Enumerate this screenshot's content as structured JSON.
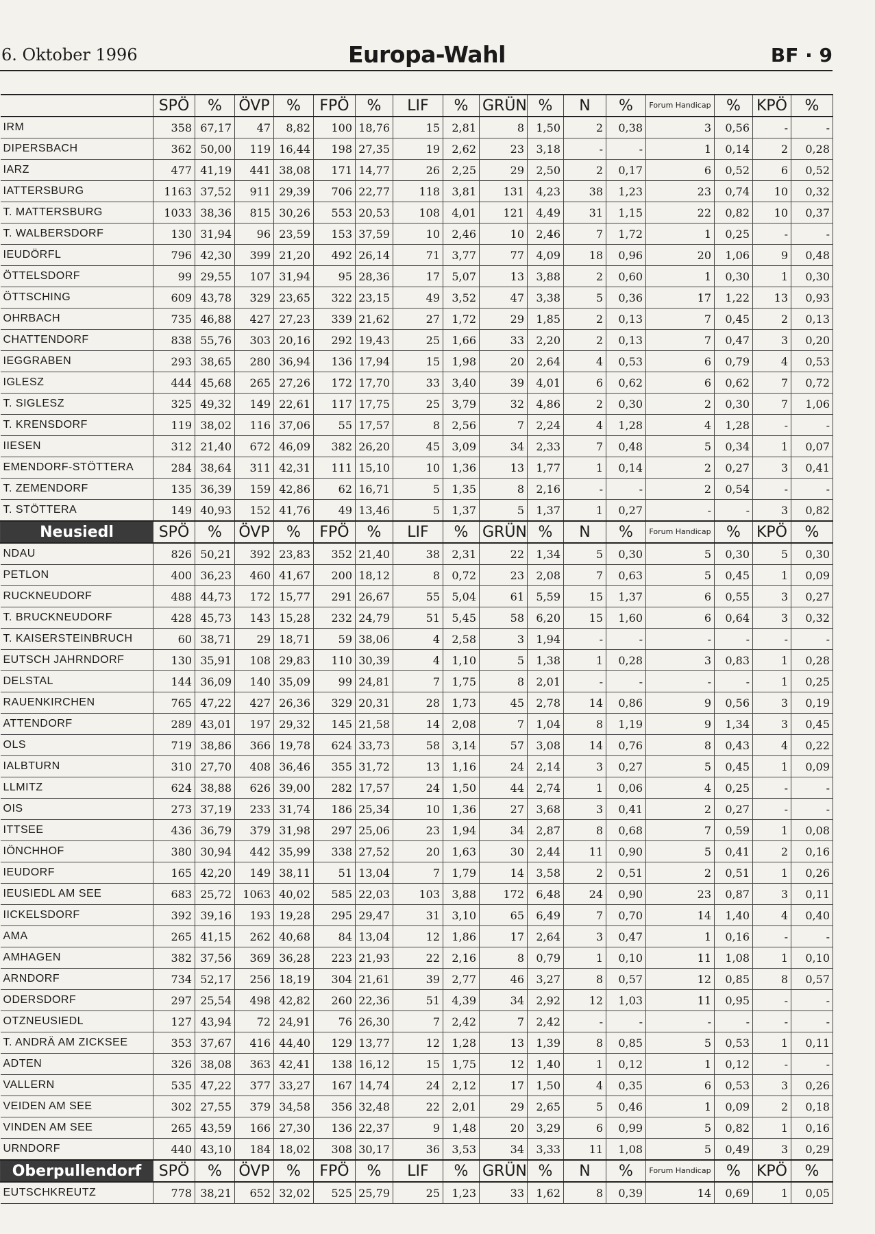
{
  "header": {
    "date": "6. Oktober 1996",
    "title": "Europa-Wahl",
    "page": "BF · 9"
  },
  "columns": [
    "SPÖ",
    "%",
    "ÖVP",
    "%",
    "FPÖ",
    "%",
    "LIF",
    "%",
    "GRÜNE",
    "%",
    "N",
    "%",
    "Forum Handicap",
    "%",
    "KPÖ",
    "%"
  ],
  "sections": [
    {
      "title": "",
      "rows": [
        [
          "IRM",
          "358",
          "67,17",
          "47",
          "8,82",
          "100",
          "18,76",
          "15",
          "2,81",
          "8",
          "1,50",
          "2",
          "0,38",
          "3",
          "0,56",
          "-",
          "-"
        ],
        [
          "DIPERSBACH",
          "362",
          "50,00",
          "119",
          "16,44",
          "198",
          "27,35",
          "19",
          "2,62",
          "23",
          "3,18",
          "-",
          "-",
          "1",
          "0,14",
          "2",
          "0,28"
        ],
        [
          "IARZ",
          "477",
          "41,19",
          "441",
          "38,08",
          "171",
          "14,77",
          "26",
          "2,25",
          "29",
          "2,50",
          "2",
          "0,17",
          "6",
          "0,52",
          "6",
          "0,52"
        ],
        [
          "IATTERSBURG",
          "1163",
          "37,52",
          "911",
          "29,39",
          "706",
          "22,77",
          "118",
          "3,81",
          "131",
          "4,23",
          "38",
          "1,23",
          "23",
          "0,74",
          "10",
          "0,32"
        ],
        [
          "T. MATTERSBURG",
          "1033",
          "38,36",
          "815",
          "30,26",
          "553",
          "20,53",
          "108",
          "4,01",
          "121",
          "4,49",
          "31",
          "1,15",
          "22",
          "0,82",
          "10",
          "0,37"
        ],
        [
          "T. WALBERSDORF",
          "130",
          "31,94",
          "96",
          "23,59",
          "153",
          "37,59",
          "10",
          "2,46",
          "10",
          "2,46",
          "7",
          "1,72",
          "1",
          "0,25",
          "-",
          "-"
        ],
        [
          "IEUDÖRFL",
          "796",
          "42,30",
          "399",
          "21,20",
          "492",
          "26,14",
          "71",
          "3,77",
          "77",
          "4,09",
          "18",
          "0,96",
          "20",
          "1,06",
          "9",
          "0,48"
        ],
        [
          "ÖTTELSDORF",
          "99",
          "29,55",
          "107",
          "31,94",
          "95",
          "28,36",
          "17",
          "5,07",
          "13",
          "3,88",
          "2",
          "0,60",
          "1",
          "0,30",
          "1",
          "0,30"
        ],
        [
          "ÖTTSCHING",
          "609",
          "43,78",
          "329",
          "23,65",
          "322",
          "23,15",
          "49",
          "3,52",
          "47",
          "3,38",
          "5",
          "0,36",
          "17",
          "1,22",
          "13",
          "0,93"
        ],
        [
          "OHRBACH",
          "735",
          "46,88",
          "427",
          "27,23",
          "339",
          "21,62",
          "27",
          "1,72",
          "29",
          "1,85",
          "2",
          "0,13",
          "7",
          "0,45",
          "2",
          "0,13"
        ],
        [
          "CHATTENDORF",
          "838",
          "55,76",
          "303",
          "20,16",
          "292",
          "19,43",
          "25",
          "1,66",
          "33",
          "2,20",
          "2",
          "0,13",
          "7",
          "0,47",
          "3",
          "0,20"
        ],
        [
          "IEGGRABEN",
          "293",
          "38,65",
          "280",
          "36,94",
          "136",
          "17,94",
          "15",
          "1,98",
          "20",
          "2,64",
          "4",
          "0,53",
          "6",
          "0,79",
          "4",
          "0,53"
        ],
        [
          "IGLESZ",
          "444",
          "45,68",
          "265",
          "27,26",
          "172",
          "17,70",
          "33",
          "3,40",
          "39",
          "4,01",
          "6",
          "0,62",
          "6",
          "0,62",
          "7",
          "0,72"
        ],
        [
          "T. SIGLESZ",
          "325",
          "49,32",
          "149",
          "22,61",
          "117",
          "17,75",
          "25",
          "3,79",
          "32",
          "4,86",
          "2",
          "0,30",
          "2",
          "0,30",
          "7",
          "1,06"
        ],
        [
          "T. KRENSDORF",
          "119",
          "38,02",
          "116",
          "37,06",
          "55",
          "17,57",
          "8",
          "2,56",
          "7",
          "2,24",
          "4",
          "1,28",
          "4",
          "1,28",
          "-",
          "-"
        ],
        [
          "IIESEN",
          "312",
          "21,40",
          "672",
          "46,09",
          "382",
          "26,20",
          "45",
          "3,09",
          "34",
          "2,33",
          "7",
          "0,48",
          "5",
          "0,34",
          "1",
          "0,07"
        ],
        [
          "EMENDORF-STÖTTERA",
          "284",
          "38,64",
          "311",
          "42,31",
          "111",
          "15,10",
          "10",
          "1,36",
          "13",
          "1,77",
          "1",
          "0,14",
          "2",
          "0,27",
          "3",
          "0,41"
        ],
        [
          "T. ZEMENDORF",
          "135",
          "36,39",
          "159",
          "42,86",
          "62",
          "16,71",
          "5",
          "1,35",
          "8",
          "2,16",
          "-",
          "-",
          "2",
          "0,54",
          "-",
          "-"
        ],
        [
          "T. STÖTTERA",
          "149",
          "40,93",
          "152",
          "41,76",
          "49",
          "13,46",
          "5",
          "1,37",
          "5",
          "1,37",
          "1",
          "0,27",
          "-",
          "-",
          "3",
          "0,82"
        ]
      ]
    },
    {
      "title": "Neusiedl",
      "rows": [
        [
          "NDAU",
          "826",
          "50,21",
          "392",
          "23,83",
          "352",
          "21,40",
          "38",
          "2,31",
          "22",
          "1,34",
          "5",
          "0,30",
          "5",
          "0,30",
          "5",
          "0,30"
        ],
        [
          "PETLON",
          "400",
          "36,23",
          "460",
          "41,67",
          "200",
          "18,12",
          "8",
          "0,72",
          "23",
          "2,08",
          "7",
          "0,63",
          "5",
          "0,45",
          "1",
          "0,09"
        ],
        [
          "RUCKNEUDORF",
          "488",
          "44,73",
          "172",
          "15,77",
          "291",
          "26,67",
          "55",
          "5,04",
          "61",
          "5,59",
          "15",
          "1,37",
          "6",
          "0,55",
          "3",
          "0,27"
        ],
        [
          "T. BRUCKNEUDORF",
          "428",
          "45,73",
          "143",
          "15,28",
          "232",
          "24,79",
          "51",
          "5,45",
          "58",
          "6,20",
          "15",
          "1,60",
          "6",
          "0,64",
          "3",
          "0,32"
        ],
        [
          "T. KAISERSTEINBRUCH",
          "60",
          "38,71",
          "29",
          "18,71",
          "59",
          "38,06",
          "4",
          "2,58",
          "3",
          "1,94",
          "-",
          "-",
          "-",
          "-",
          "-",
          "-"
        ],
        [
          "EUTSCH JAHRNDORF",
          "130",
          "35,91",
          "108",
          "29,83",
          "110",
          "30,39",
          "4",
          "1,10",
          "5",
          "1,38",
          "1",
          "0,28",
          "3",
          "0,83",
          "1",
          "0,28"
        ],
        [
          "DELSTAL",
          "144",
          "36,09",
          "140",
          "35,09",
          "99",
          "24,81",
          "7",
          "1,75",
          "8",
          "2,01",
          "-",
          "-",
          "-",
          "-",
          "1",
          "0,25"
        ],
        [
          "RAUENKIRCHEN",
          "765",
          "47,22",
          "427",
          "26,36",
          "329",
          "20,31",
          "28",
          "1,73",
          "45",
          "2,78",
          "14",
          "0,86",
          "9",
          "0,56",
          "3",
          "0,19"
        ],
        [
          "ATTENDORF",
          "289",
          "43,01",
          "197",
          "29,32",
          "145",
          "21,58",
          "14",
          "2,08",
          "7",
          "1,04",
          "8",
          "1,19",
          "9",
          "1,34",
          "3",
          "0,45"
        ],
        [
          "OLS",
          "719",
          "38,86",
          "366",
          "19,78",
          "624",
          "33,73",
          "58",
          "3,14",
          "57",
          "3,08",
          "14",
          "0,76",
          "8",
          "0,43",
          "4",
          "0,22"
        ],
        [
          "IALBTURN",
          "310",
          "27,70",
          "408",
          "36,46",
          "355",
          "31,72",
          "13",
          "1,16",
          "24",
          "2,14",
          "3",
          "0,27",
          "5",
          "0,45",
          "1",
          "0,09"
        ],
        [
          "LLMITZ",
          "624",
          "38,88",
          "626",
          "39,00",
          "282",
          "17,57",
          "24",
          "1,50",
          "44",
          "2,74",
          "1",
          "0,06",
          "4",
          "0,25",
          "-",
          "-"
        ],
        [
          "OIS",
          "273",
          "37,19",
          "233",
          "31,74",
          "186",
          "25,34",
          "10",
          "1,36",
          "27",
          "3,68",
          "3",
          "0,41",
          "2",
          "0,27",
          "-",
          "-"
        ],
        [
          "ITTSEE",
          "436",
          "36,79",
          "379",
          "31,98",
          "297",
          "25,06",
          "23",
          "1,94",
          "34",
          "2,87",
          "8",
          "0,68",
          "7",
          "0,59",
          "1",
          "0,08"
        ],
        [
          "IÖNCHHOF",
          "380",
          "30,94",
          "442",
          "35,99",
          "338",
          "27,52",
          "20",
          "1,63",
          "30",
          "2,44",
          "11",
          "0,90",
          "5",
          "0,41",
          "2",
          "0,16"
        ],
        [
          "IEUDORF",
          "165",
          "42,20",
          "149",
          "38,11",
          "51",
          "13,04",
          "7",
          "1,79",
          "14",
          "3,58",
          "2",
          "0,51",
          "2",
          "0,51",
          "1",
          "0,26"
        ],
        [
          "IEUSIEDL AM SEE",
          "683",
          "25,72",
          "1063",
          "40,02",
          "585",
          "22,03",
          "103",
          "3,88",
          "172",
          "6,48",
          "24",
          "0,90",
          "23",
          "0,87",
          "3",
          "0,11"
        ],
        [
          "IICKELSDORF",
          "392",
          "39,16",
          "193",
          "19,28",
          "295",
          "29,47",
          "31",
          "3,10",
          "65",
          "6,49",
          "7",
          "0,70",
          "14",
          "1,40",
          "4",
          "0,40"
        ],
        [
          "AMA",
          "265",
          "41,15",
          "262",
          "40,68",
          "84",
          "13,04",
          "12",
          "1,86",
          "17",
          "2,64",
          "3",
          "0,47",
          "1",
          "0,16",
          "-",
          "-"
        ],
        [
          "AMHAGEN",
          "382",
          "37,56",
          "369",
          "36,28",
          "223",
          "21,93",
          "22",
          "2,16",
          "8",
          "0,79",
          "1",
          "0,10",
          "11",
          "1,08",
          "1",
          "0,10"
        ],
        [
          "ARNDORF",
          "734",
          "52,17",
          "256",
          "18,19",
          "304",
          "21,61",
          "39",
          "2,77",
          "46",
          "3,27",
          "8",
          "0,57",
          "12",
          "0,85",
          "8",
          "0,57"
        ],
        [
          "ODERSDORF",
          "297",
          "25,54",
          "498",
          "42,82",
          "260",
          "22,36",
          "51",
          "4,39",
          "34",
          "2,92",
          "12",
          "1,03",
          "11",
          "0,95",
          "-",
          "-"
        ],
        [
          "OTZNEUSIEDL",
          "127",
          "43,94",
          "72",
          "24,91",
          "76",
          "26,30",
          "7",
          "2,42",
          "7",
          "2,42",
          "-",
          "-",
          "-",
          "-",
          "-",
          "-"
        ],
        [
          "T. ANDRÄ AM ZICKSEE",
          "353",
          "37,67",
          "416",
          "44,40",
          "129",
          "13,77",
          "12",
          "1,28",
          "13",
          "1,39",
          "8",
          "0,85",
          "5",
          "0,53",
          "1",
          "0,11"
        ],
        [
          "ADTEN",
          "326",
          "38,08",
          "363",
          "42,41",
          "138",
          "16,12",
          "15",
          "1,75",
          "12",
          "1,40",
          "1",
          "0,12",
          "1",
          "0,12",
          "-",
          "-"
        ],
        [
          "VALLERN",
          "535",
          "47,22",
          "377",
          "33,27",
          "167",
          "14,74",
          "24",
          "2,12",
          "17",
          "1,50",
          "4",
          "0,35",
          "6",
          "0,53",
          "3",
          "0,26"
        ],
        [
          "VEIDEN AM SEE",
          "302",
          "27,55",
          "379",
          "34,58",
          "356",
          "32,48",
          "22",
          "2,01",
          "29",
          "2,65",
          "5",
          "0,46",
          "1",
          "0,09",
          "2",
          "0,18"
        ],
        [
          "VINDEN AM SEE",
          "265",
          "43,59",
          "166",
          "27,30",
          "136",
          "22,37",
          "9",
          "1,48",
          "20",
          "3,29",
          "6",
          "0,99",
          "5",
          "0,82",
          "1",
          "0,16"
        ],
        [
          "URNDORF",
          "440",
          "43,10",
          "184",
          "18,02",
          "308",
          "30,17",
          "36",
          "3,53",
          "34",
          "3,33",
          "11",
          "1,08",
          "5",
          "0,49",
          "3",
          "0,29"
        ]
      ]
    },
    {
      "title": "Oberpullendorf",
      "rows": [
        [
          "EUTSCHKREUTZ",
          "778",
          "38,21",
          "652",
          "32,02",
          "525",
          "25,79",
          "25",
          "1,23",
          "33",
          "1,62",
          "8",
          "0,39",
          "14",
          "0,69",
          "1",
          "0,05"
        ]
      ]
    }
  ]
}
